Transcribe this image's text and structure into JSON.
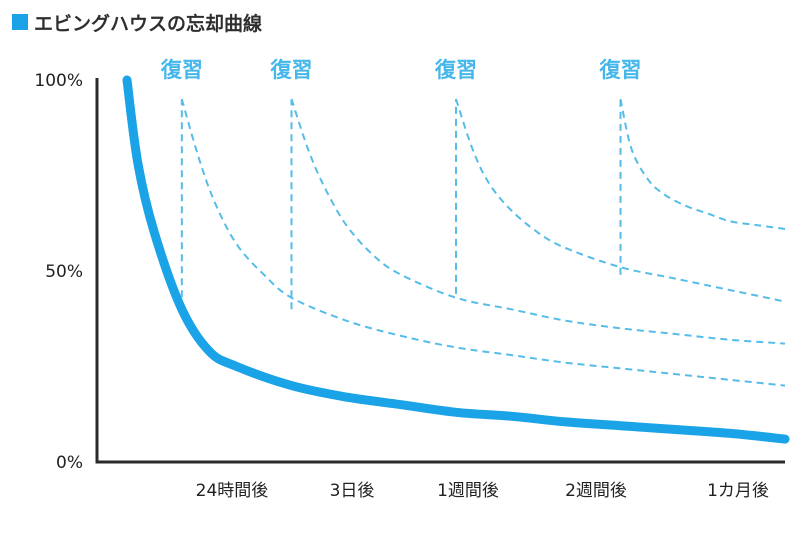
{
  "chart_data": {
    "type": "line",
    "title": "エビングハウスの忘却曲線",
    "x_ticks": [
      "24時間後",
      "3日後",
      "1週間後",
      "2週間後",
      "1カ月後"
    ],
    "y_ticks": [
      "100%",
      "50%",
      "0%"
    ],
    "ylim": [
      0,
      100
    ],
    "grid": false,
    "review_label": "復習",
    "main_curve": {
      "x": [
        0,
        0.2,
        0.5,
        1,
        1.5,
        2,
        3,
        4,
        5,
        6,
        7,
        8,
        9,
        10,
        11,
        12
      ],
      "y": [
        100,
        78,
        60,
        40,
        29,
        25,
        20,
        17,
        15,
        13,
        12,
        10.5,
        9.5,
        8.5,
        7.5,
        6
      ]
    },
    "reviews": [
      {
        "label": "復習",
        "x_at": 1,
        "y_before": 40,
        "y_after": 95,
        "x": [
          1,
          1.3,
          1.6,
          2,
          2.5,
          3,
          4,
          5,
          6,
          7,
          8,
          9,
          10,
          11,
          12
        ],
        "y": [
          95,
          80,
          68,
          57,
          49,
          43,
          37,
          33,
          30,
          28,
          26,
          24.5,
          23,
          21.5,
          20
        ]
      },
      {
        "label": "復習",
        "x_at": 3,
        "y_before": 40,
        "y_after": 95,
        "x": [
          3,
          3.3,
          3.6,
          4,
          4.5,
          5,
          6,
          7,
          8,
          9,
          10,
          11,
          12
        ],
        "y": [
          95,
          82,
          72,
          62,
          54,
          49,
          43,
          40,
          37,
          35,
          33.5,
          32,
          31
        ]
      },
      {
        "label": "復習",
        "x_at": 6,
        "y_before": 44,
        "y_after": 95,
        "x": [
          6,
          6.3,
          6.6,
          7,
          7.5,
          8,
          9,
          10,
          11,
          12
        ],
        "y": [
          95,
          82,
          73,
          66,
          60,
          56,
          51,
          48,
          45,
          42
        ]
      },
      {
        "label": "復習",
        "x_at": 9,
        "y_before": 49,
        "y_after": 95,
        "x": [
          9,
          9.2,
          9.5,
          9.8,
          10.2,
          10.6,
          11,
          11.5,
          12
        ],
        "y": [
          95,
          82,
          74,
          70,
          67,
          65,
          63,
          62,
          61
        ]
      }
    ],
    "colors": {
      "main": "#1aa3e6",
      "review": "#56bde9",
      "review_label": "#45b7ea",
      "axis": "#2a2a2a",
      "marker": "#1aa3e6"
    }
  }
}
